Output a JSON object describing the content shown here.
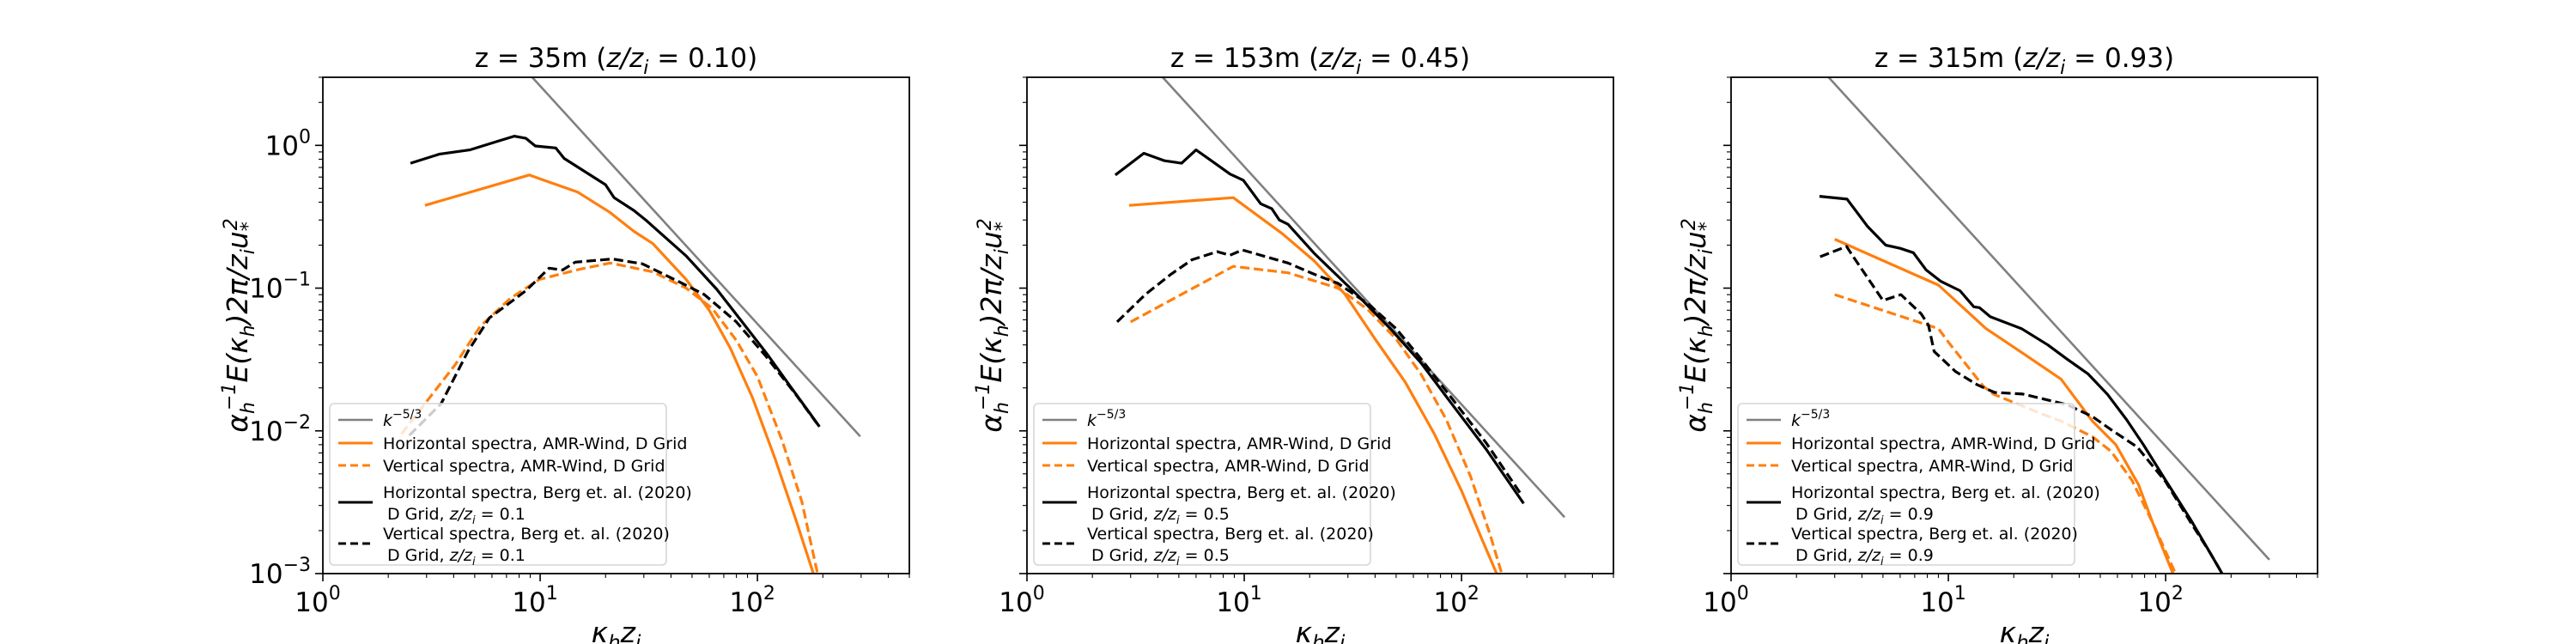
{
  "chart_data": [
    {
      "type": "line",
      "title": "z = 35m (z/z_i = 0.10)",
      "title_parts": {
        "prefix": "z = 35m (",
        "var": "z/z",
        "sub": "i",
        "suffix": " = 0.10)"
      },
      "xlabel": "κ_h z_i",
      "ylabel": "α_h^{-1} E(κ_h) 2π / z_i u_*^2",
      "xscale": "log",
      "yscale": "log",
      "xlim": [
        1,
        500
      ],
      "ylim": [
        0.001,
        3
      ],
      "xticks": [
        {
          "exp": "0",
          "value": 1
        },
        {
          "exp": "1",
          "value": 10
        },
        {
          "exp": "2",
          "value": 100
        }
      ],
      "yticks": [
        {
          "exp": "-3",
          "value": 0.001
        },
        {
          "exp": "-2",
          "value": 0.01
        },
        {
          "exp": "-1",
          "value": 0.1
        },
        {
          "exp": "0",
          "value": 1
        }
      ],
      "show_ylabels": true,
      "legend_position": "lower-left",
      "series": [
        {
          "name": "k^{-5/3}",
          "color": "#808080",
          "dash": "solid",
          "kind": "powerlaw",
          "coef": 121,
          "exponent": -1.6667,
          "x": [
            9.2,
            297
          ]
        },
        {
          "name": "Horizontal spectra, AMR-Wind, D Grid",
          "color": "#ff7f0e",
          "dash": "solid",
          "x": [
            2.95,
            8.9,
            14.9,
            20.9,
            27,
            33,
            47,
            60,
            75,
            95,
            120,
            150,
            181
          ],
          "y": [
            0.38,
            0.62,
            0.47,
            0.34,
            0.25,
            0.205,
            0.115,
            0.07,
            0.038,
            0.017,
            0.0065,
            0.0024,
            0.001
          ]
        },
        {
          "name": "Vertical spectra, AMR-Wind, D Grid",
          "color": "#ff7f0e",
          "dash": "dashed",
          "x": [
            2.3,
            2.95,
            4.06,
            5.3,
            7.3,
            9.9,
            15,
            21,
            33,
            47,
            62,
            80,
            100,
            130,
            160,
            189
          ],
          "y": [
            0.0095,
            0.0155,
            0.029,
            0.054,
            0.085,
            0.115,
            0.135,
            0.15,
            0.13,
            0.1,
            0.072,
            0.043,
            0.024,
            0.0085,
            0.0032,
            0.001
          ]
        },
        {
          "name": "Horizontal spectra, Berg et. al. (2020)",
          "name_line2": "D Grid, z/z_i = 0.1",
          "color": "#000000",
          "dash": "solid",
          "x": [
            2.53,
            3.45,
            4.74,
            6.4,
            7.6,
            8.6,
            9.5,
            11.8,
            12.9,
            20,
            21.9,
            27,
            30.6,
            47,
            65,
            85,
            110,
            140,
            170,
            193
          ],
          "y": [
            0.75,
            0.87,
            0.93,
            1.07,
            1.16,
            1.12,
            0.99,
            0.96,
            0.81,
            0.53,
            0.43,
            0.35,
            0.3,
            0.168,
            0.098,
            0.058,
            0.035,
            0.021,
            0.014,
            0.0107
          ]
        },
        {
          "name": "Vertical spectra, Berg et. al. (2020)",
          "name_line2": "D Grid, z/z_i = 0.1",
          "color": "#000000",
          "dash": "dashed",
          "x": [
            2.5,
            3.5,
            4.65,
            5.85,
            7.5,
            8.6,
            11.0,
            12.7,
            14.5,
            21.5,
            29.5,
            43,
            57,
            80,
            110,
            150,
            190
          ],
          "y": [
            0.0093,
            0.0155,
            0.036,
            0.062,
            0.082,
            0.096,
            0.138,
            0.134,
            0.152,
            0.16,
            0.148,
            0.112,
            0.09,
            0.058,
            0.033,
            0.018,
            0.011
          ]
        }
      ]
    },
    {
      "type": "line",
      "title": "z = 153m (z/z_i = 0.45)",
      "title_parts": {
        "prefix": "z = 153m (",
        "var": "z/z",
        "sub": "i",
        "suffix": " = 0.45)"
      },
      "xlabel": "κ_h z_i",
      "ylabel": "α_h^{-1} E(κ_h) 2π / z_i u_*^2",
      "xscale": "log",
      "yscale": "log",
      "xlim": [
        1,
        500
      ],
      "ylim": [
        0.001,
        3
      ],
      "xticks": [
        {
          "exp": "0",
          "value": 1
        },
        {
          "exp": "1",
          "value": 10
        },
        {
          "exp": "2",
          "value": 100
        }
      ],
      "yticks": [
        {
          "exp": "-3",
          "value": 0.001
        },
        {
          "exp": "-2",
          "value": 0.01
        },
        {
          "exp": "-1",
          "value": 0.1
        },
        {
          "exp": "0",
          "value": 1
        }
      ],
      "show_ylabels": false,
      "legend_position": "lower-left",
      "series": [
        {
          "name": "k^{-5/3}",
          "color": "#808080",
          "dash": "solid",
          "kind": "powerlaw",
          "coef": 33,
          "exponent": -1.6667,
          "x": [
            4.2,
            298
          ]
        },
        {
          "name": "Horizontal spectra, AMR-Wind, D Grid",
          "color": "#ff7f0e",
          "dash": "solid",
          "x": [
            2.95,
            8.9,
            15,
            21,
            29,
            40,
            55,
            75,
            100,
            125,
            145
          ],
          "y": [
            0.38,
            0.43,
            0.24,
            0.155,
            0.091,
            0.044,
            0.022,
            0.0095,
            0.0038,
            0.0017,
            0.001
          ]
        },
        {
          "name": "Vertical spectra, AMR-Wind, D Grid",
          "color": "#ff7f0e",
          "dash": "dashed",
          "x": [
            3.0,
            8.9,
            15.9,
            27,
            37,
            50,
            65,
            85,
            110,
            135,
            153
          ],
          "y": [
            0.058,
            0.142,
            0.128,
            0.1,
            0.071,
            0.044,
            0.025,
            0.012,
            0.0048,
            0.0019,
            0.001
          ]
        },
        {
          "name": "Horizontal spectra, Berg et. al. (2020)",
          "name_line2": "D Grid, z/z_i = 0.5",
          "color": "#000000",
          "dash": "solid",
          "x": [
            2.55,
            3.45,
            4.3,
            5.15,
            6.0,
            6.9,
            8.6,
            9.9,
            11.9,
            13.4,
            14.5,
            15.9,
            21,
            33,
            47,
            65,
            90,
            130,
            193
          ],
          "y": [
            0.62,
            0.88,
            0.78,
            0.75,
            0.93,
            0.8,
            0.63,
            0.57,
            0.39,
            0.36,
            0.3,
            0.28,
            0.175,
            0.09,
            0.052,
            0.03,
            0.0155,
            0.0074,
            0.0031
          ]
        },
        {
          "name": "Vertical spectra, Berg et. al. (2020)",
          "name_line2": "D Grid, z/z_i = 0.5",
          "color": "#000000",
          "dash": "dashed",
          "x": [
            2.6,
            3.5,
            4.6,
            5.75,
            7.5,
            8.6,
            9.8,
            15.9,
            21,
            27,
            37,
            50,
            65,
            90,
            130,
            190
          ],
          "y": [
            0.058,
            0.09,
            0.125,
            0.158,
            0.18,
            0.17,
            0.185,
            0.15,
            0.125,
            0.108,
            0.078,
            0.052,
            0.032,
            0.017,
            0.0082,
            0.0035
          ]
        }
      ]
    },
    {
      "type": "line",
      "title": "z = 315m (z/z_i = 0.93)",
      "title_parts": {
        "prefix": "z = 315m (",
        "var": "z/z",
        "sub": "i",
        "suffix": " = 0.93)"
      },
      "xlabel": "κ_h z_i",
      "ylabel": "α_h^{-1} E(κ_h) 2π / z_i u_*^2",
      "xscale": "log",
      "yscale": "log",
      "xlim": [
        1,
        500
      ],
      "ylim": [
        0.001,
        3
      ],
      "xticks": [
        {
          "exp": "0",
          "value": 1
        },
        {
          "exp": "1",
          "value": 10
        },
        {
          "exp": "2",
          "value": 100
        }
      ],
      "yticks": [
        {
          "exp": "-3",
          "value": 0.001
        },
        {
          "exp": "-2",
          "value": 0.01
        },
        {
          "exp": "-1",
          "value": 0.1
        },
        {
          "exp": "0",
          "value": 1
        }
      ],
      "show_ylabels": false,
      "legend_position": "lower-left",
      "series": [
        {
          "name": "k^{-5/3}",
          "color": "#808080",
          "dash": "solid",
          "kind": "powerlaw",
          "coef": 16.8,
          "exponent": -1.6667,
          "x": [
            2.81,
            300
          ]
        },
        {
          "name": "Horizontal spectra, AMR-Wind, D Grid",
          "color": "#ff7f0e",
          "dash": "solid",
          "x": [
            3.0,
            9.0,
            14.9,
            22,
            33,
            46,
            59,
            75,
            90,
            108
          ],
          "y": [
            0.22,
            0.105,
            0.052,
            0.035,
            0.023,
            0.0117,
            0.008,
            0.0042,
            0.002,
            0.001
          ]
        },
        {
          "name": "Vertical spectra, AMR-Wind, D Grid",
          "color": "#ff7f0e",
          "dash": "dashed",
          "x": [
            3.0,
            9.0,
            10.1,
            14.5,
            16.2,
            27.4,
            33,
            46,
            56,
            70,
            88,
            111
          ],
          "y": [
            0.09,
            0.052,
            0.041,
            0.0205,
            0.018,
            0.013,
            0.0117,
            0.0091,
            0.0072,
            0.0045,
            0.0022,
            0.001
          ]
        },
        {
          "name": "Horizontal spectra, Berg et. al. (2020)",
          "name_line2": "D Grid, z/z_i = 0.9",
          "color": "#000000",
          "dash": "solid",
          "x": [
            2.55,
            3.42,
            4.25,
            5.15,
            6.0,
            6.9,
            7.9,
            9.2,
            11.3,
            13.1,
            13.9,
            15.6,
            21.7,
            28.7,
            35,
            44,
            54,
            66,
            79,
            100,
            130,
            160,
            182
          ],
          "y": [
            0.44,
            0.42,
            0.27,
            0.2,
            0.19,
            0.177,
            0.134,
            0.112,
            0.096,
            0.074,
            0.073,
            0.063,
            0.052,
            0.04,
            0.032,
            0.025,
            0.018,
            0.012,
            0.008,
            0.0045,
            0.0024,
            0.0014,
            0.001
          ]
        },
        {
          "name": "Vertical spectra, Berg et. al. (2020)",
          "name_line2": "D Grid, z/z_i = 0.9",
          "color": "#000000",
          "dash": "dashed",
          "x": [
            2.57,
            3.4,
            3.55,
            5.0,
            6.05,
            7.5,
            8.1,
            8.6,
            10.8,
            13.6,
            16.3,
            22,
            35,
            46,
            56,
            74,
            100,
            130,
            160,
            182
          ],
          "y": [
            0.166,
            0.196,
            0.177,
            0.082,
            0.09,
            0.066,
            0.055,
            0.036,
            0.026,
            0.021,
            0.0186,
            0.0181,
            0.0153,
            0.0126,
            0.0102,
            0.0077,
            0.0044,
            0.0023,
            0.0014,
            0.001
          ]
        }
      ]
    }
  ]
}
